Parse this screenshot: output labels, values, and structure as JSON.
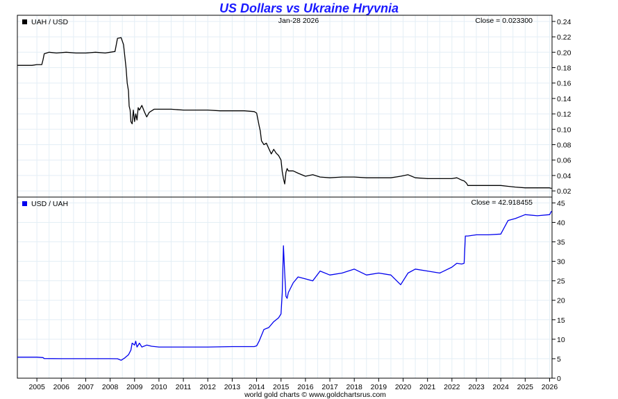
{
  "title": "US Dollars vs Ukraine Hryvnia",
  "footer": "world gold charts © www.goldchartsrus.com",
  "colors": {
    "title": "#1a1aff",
    "uah_usd": "#000000",
    "usd_uah": "#0000ee",
    "grid": "#e3eef5"
  },
  "chart_data": [
    {
      "type": "line",
      "legend": "UAH / USD",
      "date_label": "Jan-28  2026",
      "close_label": "Close = 0.023300",
      "x_tick_labels": [
        "2005",
        "2006",
        "2007",
        "2008",
        "2009",
        "2010",
        "2011",
        "2012",
        "2013",
        "2014",
        "2015",
        "2016",
        "2017",
        "2018",
        "2019",
        "2020",
        "2021",
        "2022",
        "2023",
        "2024",
        "2025",
        "2026"
      ],
      "xlim": [
        2004.2,
        2026.1
      ],
      "ylim": [
        0.012,
        0.248
      ],
      "y_ticks": [
        0.02,
        0.04,
        0.06,
        0.08,
        0.1,
        0.12,
        0.14,
        0.16,
        0.18,
        0.2,
        0.22,
        0.24
      ],
      "y_tick_labels": [
        "0.02",
        "0.04",
        "0.06",
        "0.08",
        "0.10",
        "0.12",
        "0.14",
        "0.16",
        "0.18",
        "0.20",
        "0.22",
        "0.24"
      ],
      "grid": true,
      "series": [
        {
          "name": "UAH / USD",
          "color": "#000000",
          "x": [
            2004.2,
            2004.8,
            2005.0,
            2005.2,
            2005.25,
            2005.3,
            2005.5,
            2005.8,
            2006.2,
            2006.6,
            2007.0,
            2007.4,
            2007.8,
            2008.0,
            2008.2,
            2008.3,
            2008.45,
            2008.55,
            2008.65,
            2008.7,
            2008.75,
            2008.78,
            2008.82,
            2008.85,
            2008.9,
            2008.95,
            2009.0,
            2009.05,
            2009.1,
            2009.15,
            2009.2,
            2009.3,
            2009.4,
            2009.5,
            2009.6,
            2009.7,
            2009.8,
            2010.0,
            2010.5,
            2011.0,
            2011.5,
            2012.0,
            2012.5,
            2013.0,
            2013.5,
            2013.9,
            2014.0,
            2014.1,
            2014.15,
            2014.2,
            2014.3,
            2014.4,
            2014.5,
            2014.6,
            2014.7,
            2014.8,
            2014.9,
            2015.0,
            2015.05,
            2015.1,
            2015.15,
            2015.2,
            2015.25,
            2015.3,
            2015.5,
            2015.7,
            2016.0,
            2016.3,
            2016.6,
            2017.0,
            2017.5,
            2018.0,
            2018.5,
            2019.0,
            2019.5,
            2019.9,
            2020.2,
            2020.5,
            2021.0,
            2021.5,
            2022.0,
            2022.2,
            2022.4,
            2022.5,
            2022.6,
            2022.65,
            2023.0,
            2023.5,
            2024.0,
            2024.3,
            2024.6,
            2025.0,
            2025.5,
            2026.0,
            2026.08
          ],
          "values": [
            0.183,
            0.183,
            0.184,
            0.184,
            0.19,
            0.198,
            0.2,
            0.199,
            0.2,
            0.199,
            0.199,
            0.2,
            0.199,
            0.2,
            0.201,
            0.218,
            0.219,
            0.21,
            0.18,
            0.16,
            0.15,
            0.13,
            0.125,
            0.11,
            0.107,
            0.125,
            0.11,
            0.12,
            0.112,
            0.128,
            0.125,
            0.131,
            0.123,
            0.116,
            0.122,
            0.124,
            0.126,
            0.126,
            0.126,
            0.125,
            0.125,
            0.125,
            0.124,
            0.124,
            0.124,
            0.123,
            0.121,
            0.105,
            0.098,
            0.085,
            0.08,
            0.082,
            0.075,
            0.068,
            0.074,
            0.069,
            0.066,
            0.06,
            0.045,
            0.036,
            0.029,
            0.044,
            0.049,
            0.046,
            0.046,
            0.043,
            0.039,
            0.041,
            0.038,
            0.037,
            0.038,
            0.038,
            0.037,
            0.037,
            0.037,
            0.039,
            0.041,
            0.037,
            0.036,
            0.036,
            0.036,
            0.037,
            0.034,
            0.033,
            0.03,
            0.027,
            0.027,
            0.027,
            0.027,
            0.026,
            0.025,
            0.024,
            0.024,
            0.024,
            0.0233
          ]
        }
      ]
    },
    {
      "type": "line",
      "legend": "USD / UAH",
      "close_label": "Close = 42.918455",
      "x_tick_labels": [
        "2005",
        "2006",
        "2007",
        "2008",
        "2009",
        "2010",
        "2011",
        "2012",
        "2013",
        "2014",
        "2015",
        "2016",
        "2017",
        "2018",
        "2019",
        "2020",
        "2021",
        "2022",
        "2023",
        "2024",
        "2025",
        "2026"
      ],
      "xlim": [
        2004.2,
        2026.1
      ],
      "ylim": [
        0,
        46.5
      ],
      "y_ticks": [
        0,
        5,
        10,
        15,
        20,
        25,
        30,
        35,
        40,
        45
      ],
      "y_tick_labels": [
        "0",
        "5",
        "10",
        "15",
        "20",
        "25",
        "30",
        "35",
        "40",
        "45"
      ],
      "grid": true,
      "series": [
        {
          "name": "USD / UAH",
          "color": "#0000ee",
          "x": [
            2004.2,
            2005.0,
            2005.25,
            2005.3,
            2006.0,
            2007.0,
            2008.0,
            2008.3,
            2008.45,
            2008.6,
            2008.75,
            2008.85,
            2008.9,
            2009.0,
            2009.05,
            2009.1,
            2009.2,
            2009.3,
            2009.5,
            2009.7,
            2010.0,
            2011.0,
            2012.0,
            2013.0,
            2013.9,
            2014.0,
            2014.1,
            2014.2,
            2014.3,
            2014.5,
            2014.7,
            2014.9,
            2015.0,
            2015.05,
            2015.1,
            2015.15,
            2015.2,
            2015.25,
            2015.3,
            2015.5,
            2015.7,
            2016.0,
            2016.3,
            2016.6,
            2017.0,
            2017.5,
            2018.0,
            2018.5,
            2019.0,
            2019.5,
            2019.9,
            2020.2,
            2020.5,
            2021.0,
            2021.5,
            2022.0,
            2022.2,
            2022.4,
            2022.5,
            2022.55,
            2022.65,
            2023.0,
            2023.5,
            2024.0,
            2024.3,
            2024.6,
            2025.0,
            2025.5,
            2026.0,
            2026.08
          ],
          "values": [
            5.4,
            5.4,
            5.3,
            5.05,
            5.0,
            5.0,
            5.0,
            4.98,
            4.6,
            5.2,
            6.0,
            7.2,
            9.0,
            8.5,
            9.5,
            8.0,
            9.0,
            8.0,
            8.5,
            8.2,
            8.0,
            8.0,
            8.0,
            8.1,
            8.1,
            8.3,
            9.5,
            11.0,
            12.5,
            13.0,
            14.5,
            15.5,
            16.5,
            22.0,
            34.0,
            27.0,
            21.0,
            20.5,
            22.0,
            24.5,
            26.0,
            25.5,
            25.0,
            27.5,
            26.5,
            27.0,
            28.0,
            26.5,
            27.0,
            26.5,
            24.0,
            27.0,
            28.0,
            27.5,
            27.0,
            28.5,
            29.5,
            29.3,
            29.5,
            36.5,
            36.5,
            36.8,
            36.8,
            37.0,
            40.5,
            41.0,
            42.0,
            41.7,
            42.0,
            42.9
          ]
        }
      ]
    }
  ]
}
